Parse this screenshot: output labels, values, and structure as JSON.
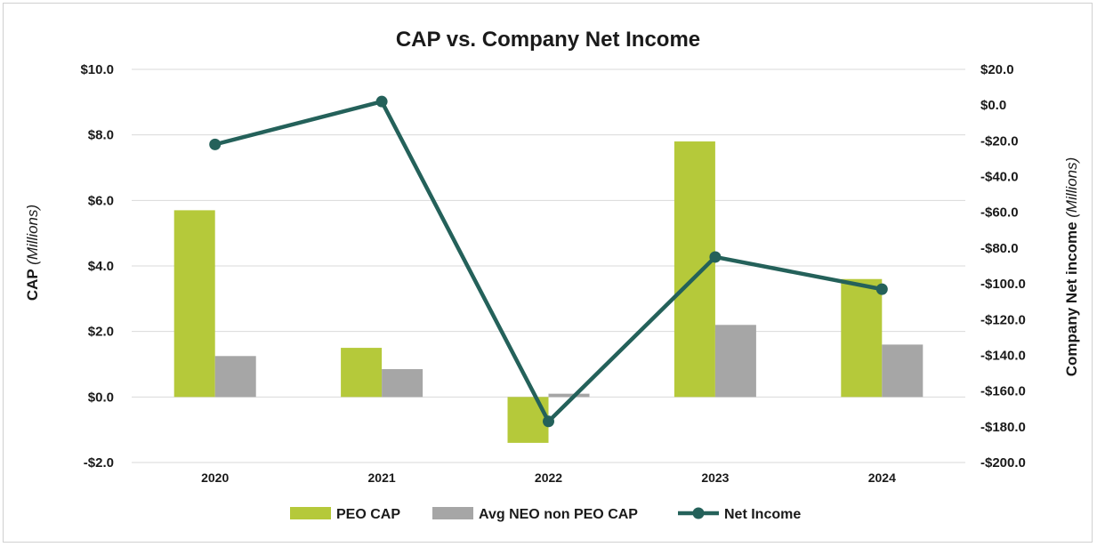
{
  "chart_data": {
    "type": "bar",
    "title": "CAP vs. Company Net Income",
    "categories": [
      "2020",
      "2021",
      "2022",
      "2023",
      "2024"
    ],
    "series": [
      {
        "name": "PEO CAP",
        "kind": "bar",
        "axis": "left",
        "color": "#b5c93a",
        "values": [
          5.7,
          1.5,
          -1.4,
          7.8,
          3.6
        ]
      },
      {
        "name": "Avg NEO non PEO CAP",
        "kind": "bar",
        "axis": "left",
        "color": "#a6a6a6",
        "values": [
          1.25,
          0.85,
          0.1,
          2.2,
          1.6
        ]
      },
      {
        "name": "Net Income",
        "kind": "line",
        "axis": "right",
        "color": "#24615a",
        "values": [
          -22,
          2,
          -177,
          -85,
          -103
        ]
      }
    ],
    "y_left": {
      "label_main": "CAP",
      "label_unit": "(Millions)",
      "ylim": [
        -2,
        10
      ],
      "ticks": [
        -2,
        0,
        2,
        4,
        6,
        8,
        10
      ],
      "tick_labels": [
        "-$2.0",
        "$0.0",
        "$2.0",
        "$4.0",
        "$6.0",
        "$8.0",
        "$10.0"
      ]
    },
    "y_right": {
      "label_main": "Company Net income",
      "label_unit": "(Millions)",
      "ylim": [
        -200,
        20
      ],
      "ticks": [
        -200,
        -180,
        -160,
        -140,
        -120,
        -100,
        -80,
        -60,
        -40,
        -20,
        0,
        20
      ],
      "tick_labels": [
        "-$200.0",
        "-$180.0",
        "-$160.0",
        "-$140.0",
        "-$120.0",
        "-$100.0",
        "-$80.0",
        "-$60.0",
        "-$40.0",
        "-$20.0",
        "$0.0",
        "$20.0"
      ]
    },
    "grid": true,
    "legend_position": "bottom"
  }
}
